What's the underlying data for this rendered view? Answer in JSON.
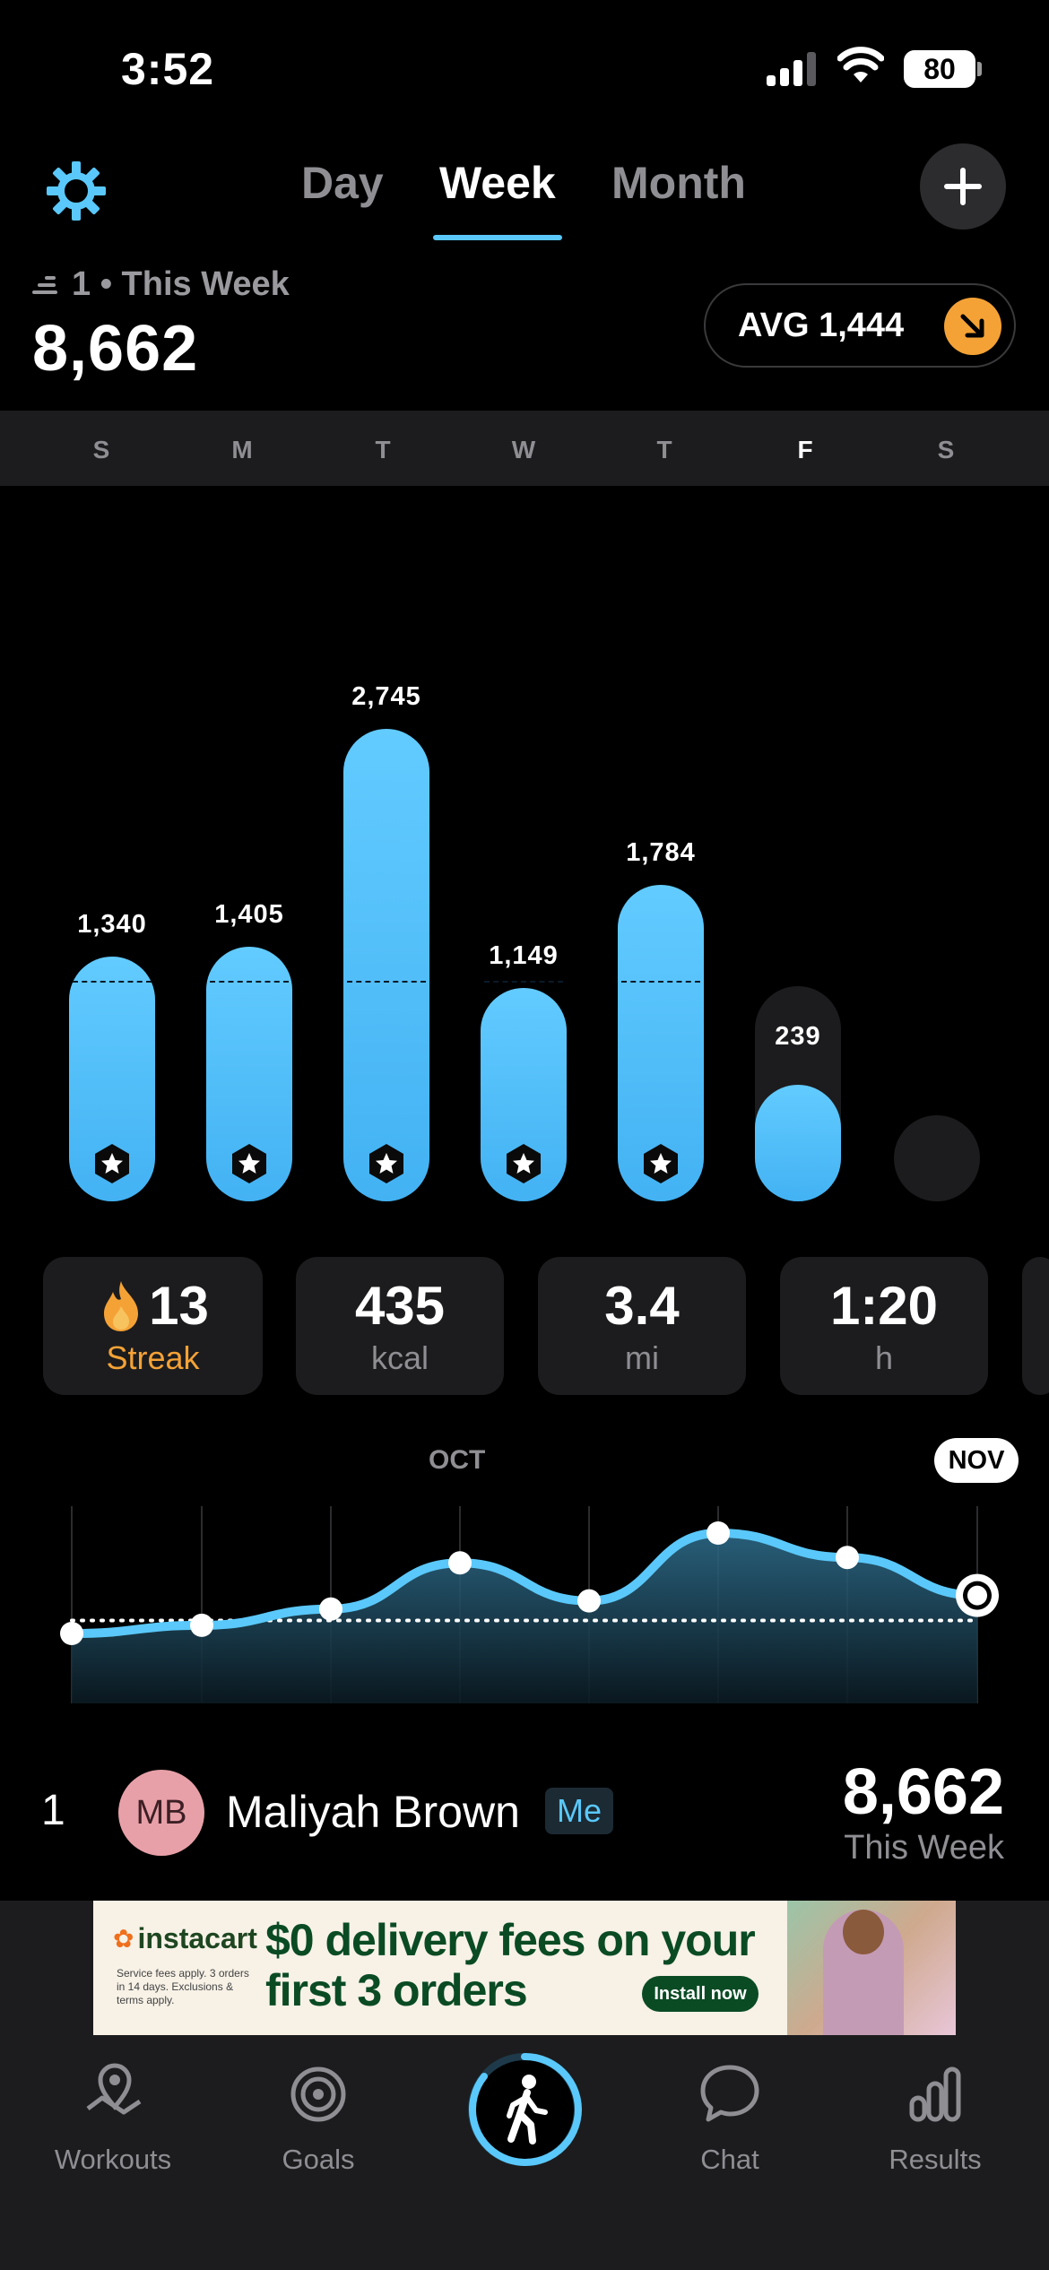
{
  "status_bar": {
    "time": "3:52",
    "battery": "80"
  },
  "header": {
    "tabs": [
      {
        "label": "Day",
        "active": false
      },
      {
        "label": "Week",
        "active": true
      },
      {
        "label": "Month",
        "active": false
      }
    ]
  },
  "summary": {
    "rank_text": "1 • This Week",
    "total": "8,662",
    "avg_label": "AVG 1,444"
  },
  "week_days": [
    "S",
    "M",
    "T",
    "W",
    "T",
    "F",
    "S"
  ],
  "today_index": 5,
  "chart_data": {
    "type": "bar",
    "categories": [
      "S",
      "M",
      "T",
      "W",
      "T",
      "F",
      "S"
    ],
    "values": [
      1340,
      1405,
      2745,
      1149,
      1784,
      239,
      null
    ],
    "value_labels": [
      "1,340",
      "1,405",
      "2,745",
      "1,149",
      "1,784",
      "239",
      ""
    ],
    "goal_reached": [
      true,
      true,
      true,
      true,
      true,
      false,
      false
    ],
    "goal_line": 1000,
    "track_max": 1000,
    "ylim": [
      0,
      2745
    ]
  },
  "stats": [
    {
      "value": "13",
      "label": "Streak",
      "icon": "flame-icon"
    },
    {
      "value": "435",
      "label": "kcal"
    },
    {
      "value": "3.4",
      "label": "mi"
    },
    {
      "value": "1:20",
      "label": "h"
    }
  ],
  "trend": {
    "month_labels": [
      "OCT",
      "NOV"
    ],
    "relative_levels": [
      0.0,
      0.06,
      0.18,
      0.52,
      0.24,
      0.74,
      0.56,
      0.28
    ],
    "baseline_level": 0.13
  },
  "leaderboard": {
    "rank": "1",
    "initials": "MB",
    "name": "Maliyah Brown",
    "me_badge": "Me",
    "steps": "8,662",
    "period": "This Week"
  },
  "ad": {
    "brand": "instacart",
    "fine_print": "Service fees apply. 3 orders in 14 days. Exclusions & terms apply.",
    "headline_1": "$0 delivery fees on your",
    "headline_2": "first 3 orders",
    "cta": "Install now"
  },
  "nav": [
    {
      "label": "Workouts",
      "icon": "map-pin-icon"
    },
    {
      "label": "Goals",
      "icon": "target-icon"
    },
    {
      "label": "Chat",
      "icon": "chat-bubble-icon"
    },
    {
      "label": "Results",
      "icon": "bar-chart-icon"
    }
  ],
  "colors": {
    "accent": "#5ac8fa",
    "bar": "#4cbcf8",
    "orange": "#f4a236",
    "card": "#1c1c1e",
    "muted": "#8e8e93"
  }
}
